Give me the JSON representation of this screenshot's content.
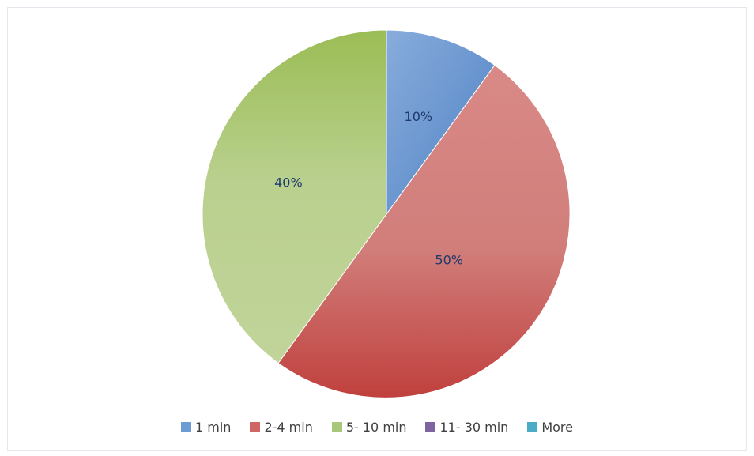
{
  "chart_data": {
    "type": "pie",
    "slices": [
      {
        "label": "1 min",
        "value": 10,
        "display": "10%",
        "color": "#6d9bd4"
      },
      {
        "label": "2-4 min",
        "value": 50,
        "display": "50%",
        "color": "#cf6764"
      },
      {
        "label": "5- 10 min",
        "value": 40,
        "display": "40%",
        "color": "#a9c77a"
      },
      {
        "label": "11- 30 min",
        "value": 0,
        "display": "",
        "color": "#8064a2"
      },
      {
        "label": "More",
        "value": 0,
        "display": "",
        "color": "#4bacc6"
      }
    ],
    "start_angle_deg": 0,
    "direction": "clockwise",
    "legend_position": "bottom"
  }
}
